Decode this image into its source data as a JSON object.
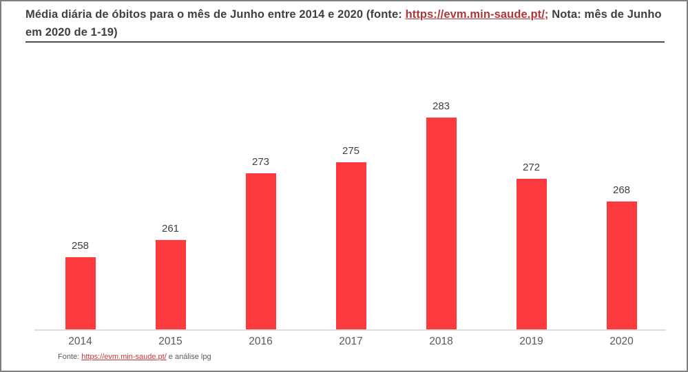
{
  "title": {
    "text_before_link": "Média diária de óbitos para o mês de Junho entre 2014 e 2020 (fonte: ",
    "link_text": "https://evm.min-saude.pt/",
    "semicolon": ";",
    "text_after_link": " Nota: mês de Junho em 2020 de 1-19)"
  },
  "footer": {
    "prefix": "Fonte: ",
    "link_text": "https://evm.min-saude.pt/",
    "suffix": " e análise lpg"
  },
  "colors": {
    "bar": "#fd3a3e",
    "title_text": "#404040",
    "title_link_red": "#b03538",
    "footer_link_red": "#c23a3c",
    "axis_line": "#dddddd",
    "value_label": "#404040",
    "year_label": "#595959",
    "frame_border": "#7f7f7f"
  },
  "chart_data": {
    "type": "bar",
    "title": "Média diária de óbitos para o mês de Junho entre 2014 e 2020 (fonte: https://evm.min-saude.pt/; Nota: mês de Junho em 2020 de 1-19)",
    "categories": [
      "2014",
      "2015",
      "2016",
      "2017",
      "2018",
      "2019",
      "2020"
    ],
    "values": [
      258,
      261,
      273,
      275,
      283,
      272,
      268
    ],
    "xlabel": "",
    "ylabel": "",
    "ylim": [
      245,
      285
    ],
    "grid": false,
    "legend": false,
    "data_labels": true,
    "bar_color": "#fd3a3e"
  }
}
